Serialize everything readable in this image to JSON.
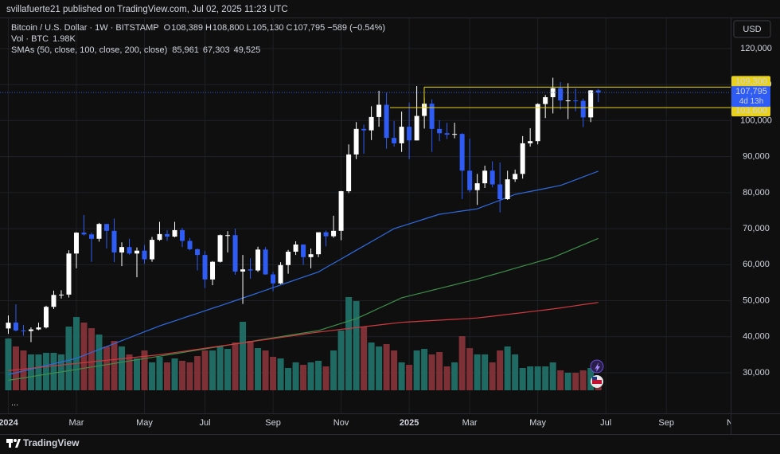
{
  "page": {
    "publisher": "svillafuerte21 published on TradingView.com, Jul 02, 2025 11:23 UTC",
    "currency": "USD",
    "brand": "TradingView",
    "more": "..."
  },
  "chart_data": {
    "type": "candlestick",
    "symbol": "Bitcoin / U.S. Dollar · 1W · BITSTAMP",
    "ohlc_header": [
      {
        "key": "O",
        "value": "108,389"
      },
      {
        "key": "H",
        "value": "108,800"
      },
      {
        "key": "L",
        "value": "105,130"
      },
      {
        "key": "C",
        "value": "107,795"
      }
    ],
    "change_label": "−589 (−0.54%)",
    "volume_legend": {
      "label": "Vol · BTC",
      "last_label": "1.98K",
      "up_color": "#1f6b64",
      "down_color": "#7d3035"
    },
    "up_color": "#ffffff",
    "down_color": "#2f5cf5",
    "categories": [
      null,
      null,
      null,
      null,
      null,
      null,
      null,
      null,
      null,
      null,
      null,
      null,
      null,
      null,
      null,
      null,
      null,
      null,
      null,
      null,
      null,
      null,
      null,
      null,
      null,
      null,
      null,
      null,
      null,
      null,
      null,
      null,
      null,
      null,
      null,
      null,
      null,
      null,
      null,
      null,
      null,
      null,
      null,
      null,
      null,
      null,
      null,
      null,
      null,
      null,
      null,
      null,
      null,
      null,
      null,
      null,
      null,
      null,
      null,
      null,
      null,
      null,
      null,
      null,
      null,
      null,
      null,
      null,
      null,
      null,
      null,
      null,
      null,
      null,
      null,
      null,
      null,
      null,
      null
    ],
    "open": [
      42300,
      43930,
      41730,
      41580,
      42030,
      42580,
      48300,
      51600,
      51700,
      63100,
      68900,
      68400,
      67200,
      71300,
      69400,
      63400,
      64900,
      63100,
      63900,
      61500,
      66900,
      68500,
      67800,
      69600,
      66600,
      64300,
      62700,
      55900,
      60800,
      68200,
      68200,
      58100,
      58700,
      58400,
      64200,
      57300,
      54800,
      59900,
      63600,
      65600,
      62100,
      62900,
      69000,
      67900,
      69400,
      80400,
      90600,
      97700,
      97300,
      101000,
      104400,
      95200,
      93700,
      98300,
      94500,
      101300,
      104700,
      97700,
      96500,
      96100,
      96300,
      86100,
      80700,
      82600,
      86100,
      82300,
      78200,
      83700,
      85200,
      93700,
      94300,
      104600,
      106500,
      109000,
      105600,
      105600,
      105500,
      100900,
      108389
    ],
    "high": [
      45900,
      49000,
      43300,
      42600,
      43900,
      48600,
      52800,
      52900,
      64000,
      69000,
      73800,
      68900,
      71600,
      71300,
      72800,
      66200,
      67200,
      64800,
      65500,
      67700,
      71900,
      69600,
      71900,
      70200,
      67400,
      64500,
      63800,
      61000,
      68400,
      69300,
      70000,
      62700,
      61800,
      65000,
      64900,
      58000,
      60700,
      64100,
      66500,
      65600,
      64500,
      68400,
      69500,
      73600,
      80500,
      93400,
      99600,
      98900,
      104000,
      108300,
      107800,
      99900,
      102500,
      105000,
      109600,
      106400,
      105900,
      100100,
      99400,
      99400,
      96500,
      95000,
      85200,
      87500,
      88700,
      88400,
      86100,
      86400,
      95700,
      97900,
      104800,
      107100,
      111900,
      110700,
      110400,
      108900,
      106100,
      108500,
      108800
    ],
    "low": [
      40800,
      41500,
      40300,
      38500,
      41800,
      42300,
      47700,
      50600,
      50900,
      59000,
      68100,
      60800,
      66400,
      64500,
      60700,
      59600,
      62800,
      56500,
      60200,
      60800,
      66600,
      66600,
      67600,
      64900,
      64000,
      58400,
      53500,
      54300,
      60600,
      63400,
      57200,
      49100,
      56100,
      58000,
      57200,
      52600,
      54600,
      57500,
      62700,
      59900,
      59000,
      62100,
      65100,
      67500,
      66800,
      79900,
      89300,
      90800,
      94600,
      98300,
      92200,
      92800,
      91300,
      89300,
      94500,
      97800,
      91300,
      94300,
      94900,
      95100,
      78200,
      80100,
      76600,
      81300,
      81500,
      74500,
      78000,
      83000,
      83900,
      92800,
      93400,
      100700,
      102000,
      103100,
      100400,
      102600,
      98200,
      99600,
      105130
    ],
    "close": [
      43900,
      41730,
      41580,
      42030,
      42580,
      48300,
      51600,
      51700,
      63100,
      68900,
      68400,
      67200,
      71300,
      69400,
      63400,
      64900,
      63100,
      63900,
      61500,
      66900,
      68500,
      67800,
      69600,
      66600,
      64300,
      62700,
      55900,
      60800,
      68200,
      68200,
      58100,
      58700,
      58400,
      64200,
      57300,
      54800,
      59900,
      63600,
      65600,
      62100,
      62900,
      69000,
      67900,
      69400,
      80400,
      90600,
      97700,
      97300,
      101000,
      104400,
      95200,
      93700,
      98300,
      94500,
      101300,
      104700,
      97700,
      96500,
      96100,
      96300,
      86100,
      80700,
      82600,
      86100,
      82300,
      78200,
      83700,
      85200,
      93700,
      94300,
      104600,
      106500,
      109000,
      105600,
      105600,
      105500,
      100900,
      108400,
      107795
    ],
    "volume": [
      9170,
      7760,
      7050,
      6350,
      6350,
      6630,
      6630,
      6350,
      11280,
      12970,
      11990,
      11000,
      9870,
      7760,
      8740,
      7760,
      6350,
      5640,
      7050,
      4940,
      5920,
      4940,
      5640,
      5220,
      4940,
      6060,
      7050,
      7050,
      7760,
      7330,
      8460,
      12130,
      8740,
      7470,
      7050,
      5920,
      5640,
      3950,
      4940,
      4510,
      4940,
      5220,
      4230,
      7050,
      10580,
      16500,
      15790,
      11280,
      8460,
      7760,
      8180,
      7050,
      4940,
      4510,
      7050,
      7330,
      6350,
      6770,
      4230,
      4940,
      9590,
      7470,
      6350,
      6350,
      4940,
      7050,
      7760,
      6350,
      3950,
      4230,
      4230,
      4230,
      4940,
      3530,
      3100,
      3100,
      3530,
      3950,
      1980
    ],
    "smas": {
      "label": "SMAs (50, close, 100, close, 200, close)",
      "lines": [
        {
          "color": "#2f6be0",
          "last_label": "85,961",
          "values": [
            29500,
            30000,
            30500,
            31000,
            31500,
            32000,
            32500,
            33000,
            33500,
            34000,
            34820,
            35640,
            36450,
            37270,
            38090,
            38910,
            39730,
            40550,
            41360,
            42180,
            43000,
            43700,
            44400,
            45100,
            45800,
            46500,
            47200,
            47900,
            48600,
            49300,
            50000,
            50730,
            51450,
            52180,
            52910,
            53640,
            54360,
            55090,
            55820,
            56550,
            57270,
            58000,
            59200,
            60400,
            61600,
            62800,
            64000,
            65200,
            66400,
            67600,
            68800,
            70000,
            70670,
            71330,
            72000,
            72670,
            73330,
            74000,
            74300,
            74600,
            74900,
            75200,
            75500,
            76300,
            77100,
            77900,
            78700,
            79500,
            79920,
            80330,
            80750,
            81170,
            81580,
            82000,
            82790,
            83580,
            84380,
            85170,
            85961
          ]
        },
        {
          "color": "#3e8f4a",
          "last_label": "67,303",
          "values": [
            27900,
            28240,
            28570,
            28910,
            29240,
            29580,
            29910,
            30250,
            30580,
            30920,
            31250,
            31590,
            31920,
            32260,
            32590,
            32930,
            33260,
            33600,
            33930,
            34270,
            34600,
            34940,
            35280,
            35620,
            35960,
            36300,
            36640,
            36980,
            37320,
            37660,
            38000,
            38340,
            38670,
            39010,
            39350,
            39690,
            40020,
            40360,
            40690,
            41030,
            41360,
            41700,
            42360,
            43020,
            43680,
            44340,
            45000,
            45970,
            46930,
            47900,
            48870,
            49830,
            50800,
            51320,
            51840,
            52360,
            52880,
            53400,
            53920,
            54440,
            54960,
            55480,
            56000,
            56600,
            57200,
            57800,
            58400,
            59000,
            59600,
            60200,
            60800,
            61400,
            62000,
            62880,
            63770,
            64650,
            65540,
            66420,
            67303
          ]
        },
        {
          "color": "#d03a3f",
          "last_label": "49,525",
          "values": [
            30600,
            30820,
            31040,
            31260,
            31480,
            31700,
            31920,
            32140,
            32360,
            32580,
            32800,
            33020,
            33240,
            33460,
            33680,
            33900,
            34120,
            34340,
            34560,
            34780,
            35000,
            35300,
            35600,
            35900,
            36200,
            36500,
            36800,
            37100,
            37400,
            37700,
            38000,
            38300,
            38600,
            38900,
            39200,
            39500,
            39800,
            40100,
            40400,
            40700,
            41000,
            41300,
            41550,
            41790,
            42040,
            42280,
            42530,
            42770,
            43020,
            43260,
            43510,
            43750,
            44000,
            44120,
            44240,
            44360,
            44480,
            44600,
            44720,
            44840,
            44960,
            45080,
            45200,
            45450,
            45700,
            45950,
            46200,
            46450,
            46700,
            46950,
            47200,
            47450,
            47700,
            48000,
            48310,
            48610,
            48920,
            49220,
            49525
          ]
        }
      ]
    },
    "last_price_label": "107,795",
    "countdown": "4d 13h",
    "price_lines": [
      {
        "value": 109300,
        "label": "109,300",
        "color": "#e8d21d"
      },
      {
        "value": 103600,
        "label": "103,600",
        "color": "#e8d21d"
      }
    ],
    "xlim": [
      -1.1,
      95.5
    ],
    "xticks": [
      {
        "value": 0,
        "label": "2024"
      },
      {
        "value": 9,
        "label": "Mar"
      },
      {
        "value": 18,
        "label": "May"
      },
      {
        "value": 26,
        "label": "Jul"
      },
      {
        "value": 35,
        "label": "Sep"
      },
      {
        "value": 44,
        "label": "Nov"
      },
      {
        "value": 53,
        "label": "2025"
      },
      {
        "value": 61,
        "label": "Mar"
      },
      {
        "value": 70,
        "label": "May"
      },
      {
        "value": 79,
        "label": "Jul"
      },
      {
        "value": 87,
        "label": "Sep"
      },
      {
        "value": 96,
        "label": "Nov"
      }
    ],
    "ylim": [
      18720,
      128620
    ],
    "yticks": [
      {
        "value": 30000,
        "label": "30,000"
      },
      {
        "value": 40000,
        "label": "40,000"
      },
      {
        "value": 50000,
        "label": "50,000"
      },
      {
        "value": 60000,
        "label": "60,000"
      },
      {
        "value": 70000,
        "label": "70,000"
      },
      {
        "value": 80000,
        "label": "80,000"
      },
      {
        "value": 90000,
        "label": "90,000"
      },
      {
        "value": 100000,
        "label": "100,000"
      },
      {
        "value": 110000,
        "label": "110,000"
      },
      {
        "value": 120000,
        "label": "120,000"
      }
    ],
    "grid": true
  }
}
